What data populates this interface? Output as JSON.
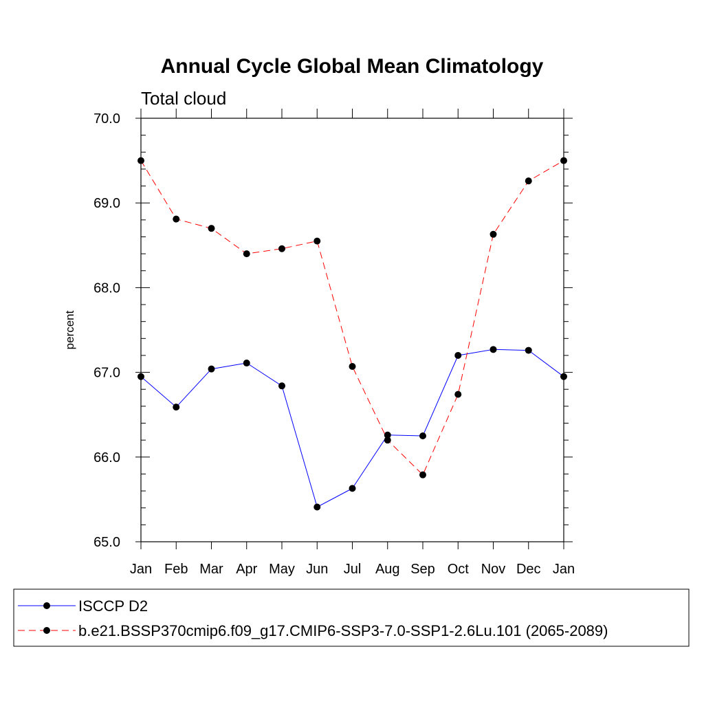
{
  "chart_data": {
    "type": "line",
    "title": "Annual Cycle Global Mean Climatology",
    "subtitle": "Total cloud",
    "xlabel": "",
    "ylabel": "percent",
    "categories": [
      "Jan",
      "Feb",
      "Mar",
      "Apr",
      "May",
      "Jun",
      "Jul",
      "Aug",
      "Sep",
      "Oct",
      "Nov",
      "Dec",
      "Jan"
    ],
    "ylim": [
      65.0,
      70.0
    ],
    "yticks": [
      "65.0",
      "66.0",
      "67.0",
      "68.0",
      "69.0",
      "70.0"
    ],
    "grid": false,
    "legend_position": "bottom",
    "series": [
      {
        "name": "ISCCP D2",
        "color": "#0000ff",
        "line_style": "solid",
        "marker": "filled-circle",
        "values": [
          66.95,
          66.59,
          67.04,
          67.11,
          66.84,
          65.41,
          65.63,
          66.26,
          66.25,
          67.2,
          67.27,
          67.26,
          66.95
        ]
      },
      {
        "name": "b.e21.BSSP370cmip6.f09_g17.CMIP6-SSP3-7.0-SSP1-2.6Lu.101 (2065-2089)",
        "color": "#ff0000",
        "line_style": "dashed",
        "marker": "filled-circle",
        "values": [
          69.5,
          68.81,
          68.7,
          68.4,
          68.46,
          68.55,
          67.07,
          66.2,
          65.79,
          66.74,
          68.63,
          69.26,
          69.5
        ]
      }
    ]
  }
}
